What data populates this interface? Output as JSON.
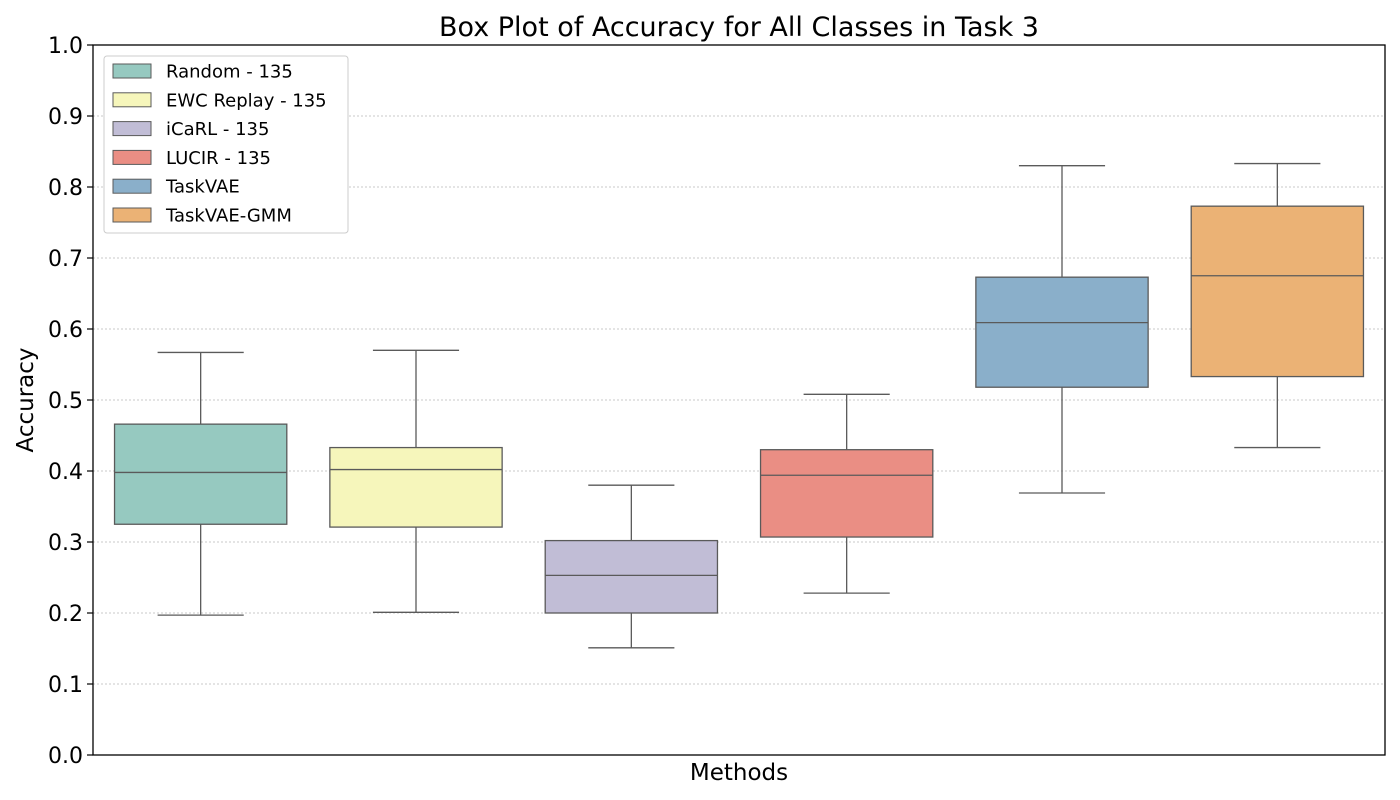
{
  "chart_data": {
    "type": "box",
    "title": "Box Plot of Accuracy for All Classes in Task 3",
    "xlabel": "Methods",
    "ylabel": "Accuracy",
    "ylim": [
      0.0,
      1.0
    ],
    "yticks": [
      "0.0",
      "0.1",
      "0.2",
      "0.3",
      "0.4",
      "0.5",
      "0.6",
      "0.7",
      "0.8",
      "0.9",
      "1.0"
    ],
    "grid": "horizontal dotted",
    "legend_position": "top-left",
    "series": [
      {
        "name": "Random - 135",
        "color": "#96c9c0",
        "whisker_low": 0.197,
        "q1": 0.325,
        "median": 0.398,
        "q3": 0.466,
        "whisker_high": 0.567
      },
      {
        "name": "EWC Replay - 135",
        "color": "#f6f6bb",
        "whisker_low": 0.201,
        "q1": 0.321,
        "median": 0.402,
        "q3": 0.433,
        "whisker_high": 0.57
      },
      {
        "name": "iCaRL - 135",
        "color": "#c1bdd6",
        "whisker_low": 0.151,
        "q1": 0.2,
        "median": 0.253,
        "q3": 0.302,
        "whisker_high": 0.38
      },
      {
        "name": "LUCIR - 135",
        "color": "#ea8e84",
        "whisker_low": 0.228,
        "q1": 0.307,
        "median": 0.394,
        "q3": 0.43,
        "whisker_high": 0.508
      },
      {
        "name": "TaskVAE",
        "color": "#8aafca",
        "whisker_low": 0.369,
        "q1": 0.518,
        "median": 0.609,
        "q3": 0.673,
        "whisker_high": 0.83
      },
      {
        "name": "TaskVAE-GMM",
        "color": "#ebb275",
        "whisker_low": 0.433,
        "q1": 0.533,
        "median": 0.675,
        "q3": 0.773,
        "whisker_high": 0.833
      }
    ]
  }
}
